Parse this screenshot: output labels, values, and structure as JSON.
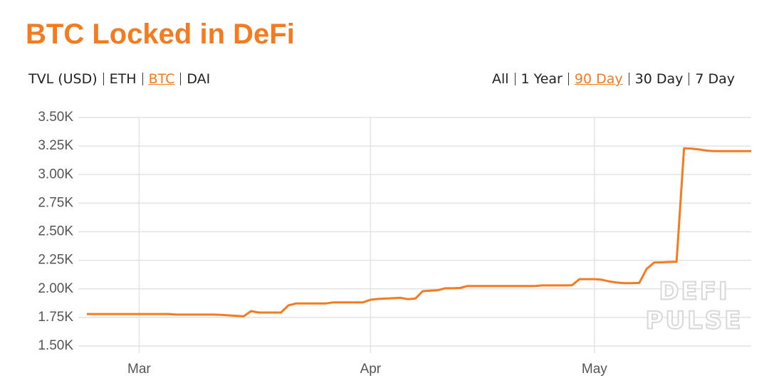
{
  "header": {
    "title": "BTC Locked in DeFi"
  },
  "controls": {
    "currency": [
      {
        "label": "TVL (USD)",
        "active": false
      },
      {
        "label": "ETH",
        "active": false
      },
      {
        "label": "BTC",
        "active": true
      },
      {
        "label": "DAI",
        "active": false
      }
    ],
    "range": [
      {
        "label": "All",
        "active": false
      },
      {
        "label": "1 Year",
        "active": false
      },
      {
        "label": "90 Day",
        "active": true
      },
      {
        "label": "30 Day",
        "active": false
      },
      {
        "label": "7 Day",
        "active": false
      }
    ]
  },
  "watermark": [
    "DEFI",
    "PULSE"
  ],
  "chart_data": {
    "type": "line",
    "color": "#f47b20",
    "grid": true,
    "categories": [
      null,
      null,
      null,
      null,
      null,
      null,
      null,
      "Mar",
      null,
      null,
      null,
      null,
      null,
      null,
      null,
      null,
      null,
      null,
      null,
      null,
      null,
      null,
      null,
      null,
      null,
      null,
      null,
      null,
      null,
      null,
      null,
      null,
      null,
      null,
      null,
      null,
      null,
      null,
      "Apr",
      null,
      null,
      null,
      null,
      null,
      null,
      null,
      null,
      null,
      null,
      null,
      null,
      null,
      null,
      null,
      null,
      null,
      null,
      null,
      null,
      null,
      null,
      null,
      null,
      null,
      null,
      null,
      null,
      null,
      "May",
      null,
      null,
      null,
      null,
      null,
      null,
      null,
      null,
      null,
      null,
      null,
      null,
      null,
      null,
      null,
      null,
      null,
      null,
      null,
      null,
      null
    ],
    "values": [
      1780,
      1780,
      1780,
      1780,
      1780,
      1780,
      1780,
      1780,
      1780,
      1780,
      1780,
      1780,
      1775,
      1775,
      1775,
      1775,
      1775,
      1775,
      1772,
      1768,
      1764,
      1760,
      1805,
      1793,
      1793,
      1793,
      1793,
      1855,
      1872,
      1872,
      1872,
      1872,
      1872,
      1882,
      1882,
      1882,
      1882,
      1882,
      1905,
      1912,
      1915,
      1918,
      1922,
      1910,
      1915,
      1980,
      1985,
      1988,
      2005,
      2005,
      2008,
      2025,
      2025,
      2025,
      2025,
      2025,
      2025,
      2025,
      2025,
      2025,
      2025,
      2030,
      2030,
      2030,
      2030,
      2032,
      2085,
      2085,
      2085,
      2080,
      2065,
      2055,
      2050,
      2050,
      2052,
      2175,
      2230,
      2232,
      2235,
      2238,
      3230,
      3228,
      3220,
      3210,
      3205,
      3205,
      3205,
      3205,
      3205,
      3205
    ],
    "ylim": [
      1500,
      3500
    ],
    "yticks": [
      {
        "value": 1500,
        "label": "1.50K"
      },
      {
        "value": 1750,
        "label": "1.75K"
      },
      {
        "value": 2000,
        "label": "2.00K"
      },
      {
        "value": 2250,
        "label": "2.25K"
      },
      {
        "value": 2500,
        "label": "2.50K"
      },
      {
        "value": 2750,
        "label": "2.75K"
      },
      {
        "value": 3000,
        "label": "3.00K"
      },
      {
        "value": 3250,
        "label": "3.25K"
      },
      {
        "value": 3500,
        "label": "3.50K"
      }
    ]
  }
}
